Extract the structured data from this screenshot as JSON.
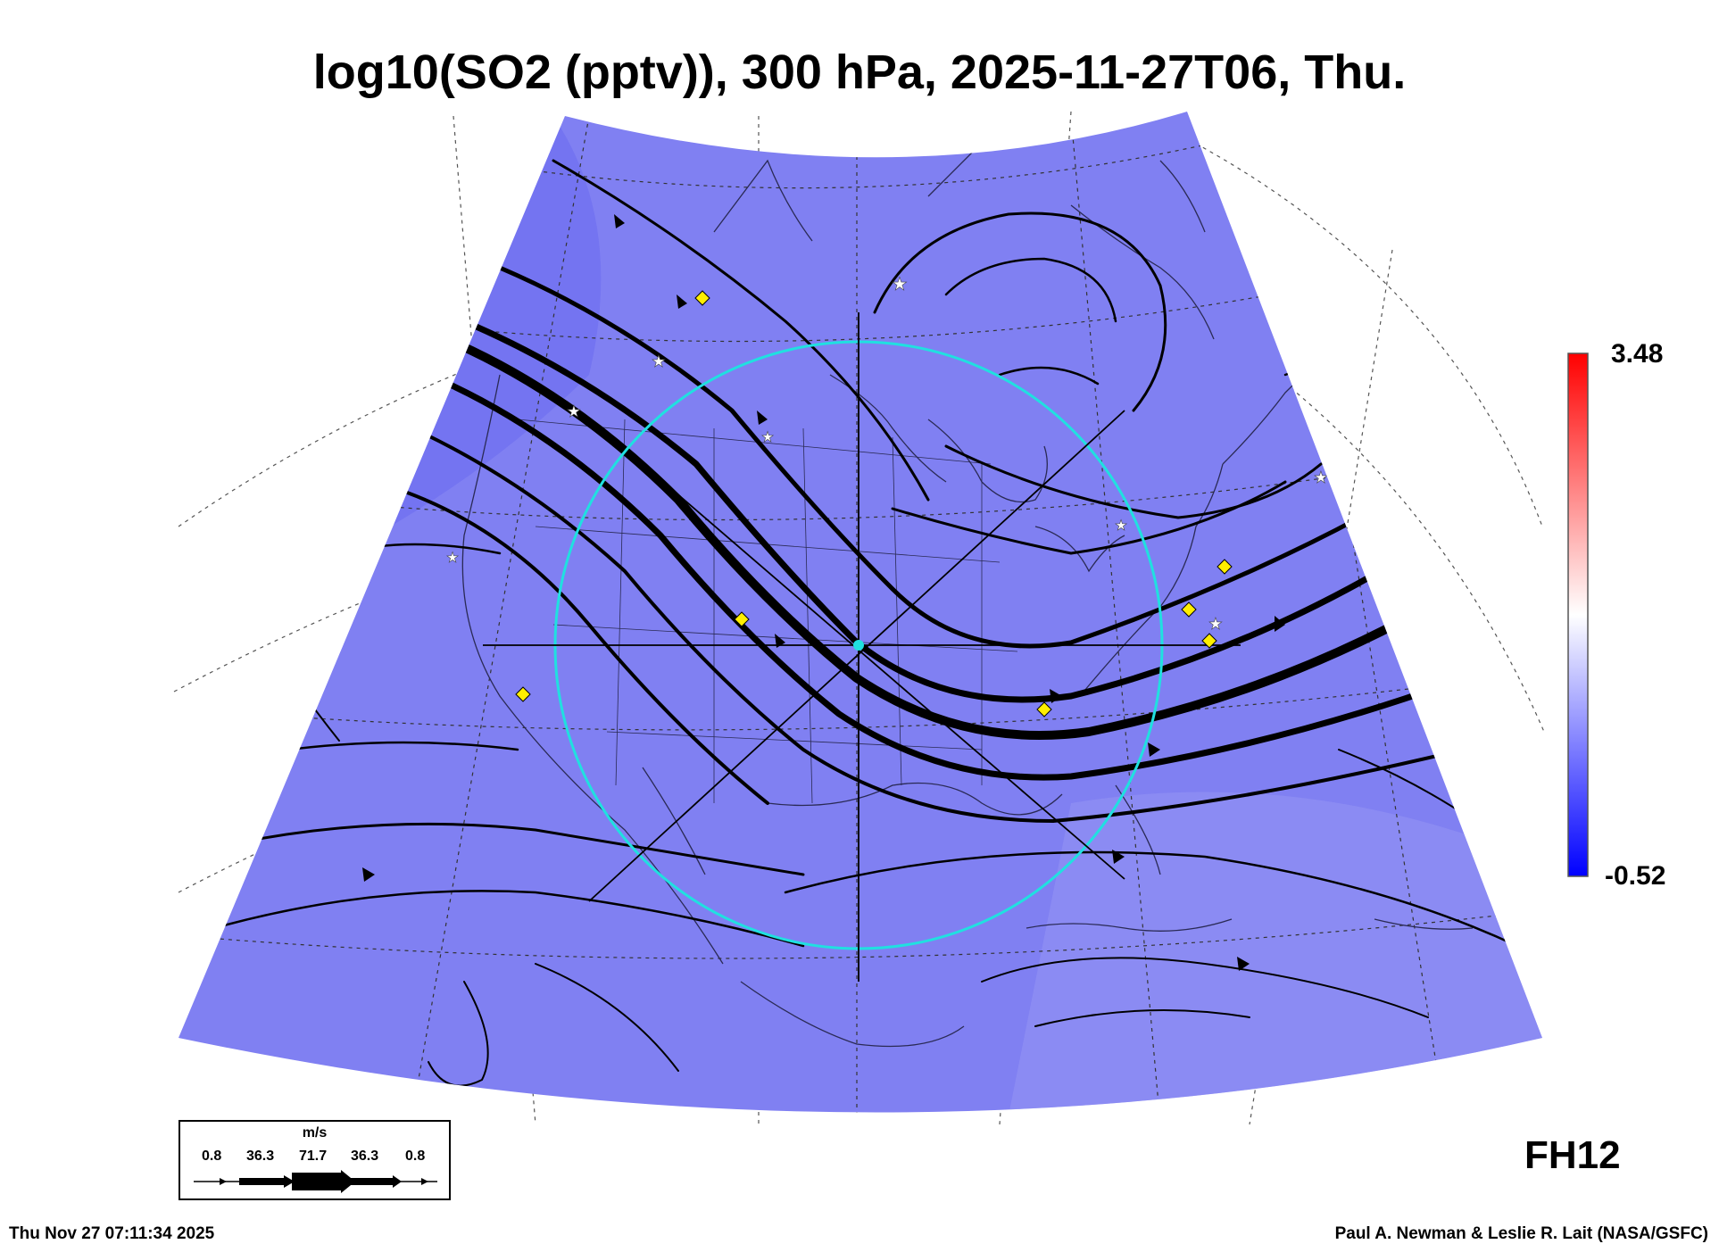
{
  "title": "log10(SO2 (pptv)), 300 hPa, 2025-11-27T06, Thu.",
  "colorbar": {
    "max_label": "3.48",
    "min_label": "-0.52",
    "colors": {
      "top": "#ff0000",
      "mid": "#ffffff",
      "bottom": "#0000ff"
    }
  },
  "field_color": "#8080f2",
  "forecast_hour": "FH12",
  "legend": {
    "unit": "m/s",
    "values": [
      "0.8",
      "36.3",
      "71.7",
      "36.3",
      "0.8"
    ]
  },
  "footer": {
    "timestamp": "Thu Nov 27 07:11:34 2025",
    "credit": "Paul A. Newman & Leslie R. Lait (NASA/GSFC)"
  },
  "overlay": {
    "circle_color": "#20e0e0",
    "marker_color": "#ffee00"
  }
}
